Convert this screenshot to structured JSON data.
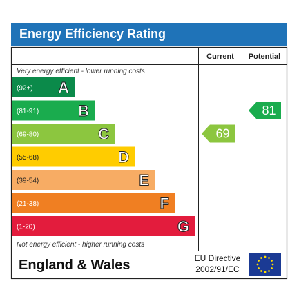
{
  "title": "Energy Efficiency Rating",
  "header": {
    "current": "Current",
    "potential": "Potential"
  },
  "top_note": "Very energy efficient - lower running costs",
  "bottom_note": "Not energy efficient - higher running costs",
  "footer": {
    "region": "England & Wales",
    "directive_line1": "EU Directive",
    "directive_line2": "2002/91/EC"
  },
  "chart_data": {
    "type": "bar",
    "bands": [
      {
        "letter": "A",
        "range": "(92+)",
        "color": "#0b8a4a"
      },
      {
        "letter": "B",
        "range": "(81-91)",
        "color": "#1aac4e"
      },
      {
        "letter": "C",
        "range": "(69-80)",
        "color": "#8cc63f"
      },
      {
        "letter": "D",
        "range": "(55-68)",
        "color": "#ffcc00"
      },
      {
        "letter": "E",
        "range": "(39-54)",
        "color": "#f7ac64"
      },
      {
        "letter": "F",
        "range": "(21-38)",
        "color": "#f07f22"
      },
      {
        "letter": "G",
        "range": "(1-20)",
        "color": "#e31c3d"
      }
    ],
    "current": {
      "value": 69,
      "band": "C",
      "color": "#8cc63f"
    },
    "potential": {
      "value": 81,
      "band": "B",
      "color": "#1aac4e"
    }
  }
}
